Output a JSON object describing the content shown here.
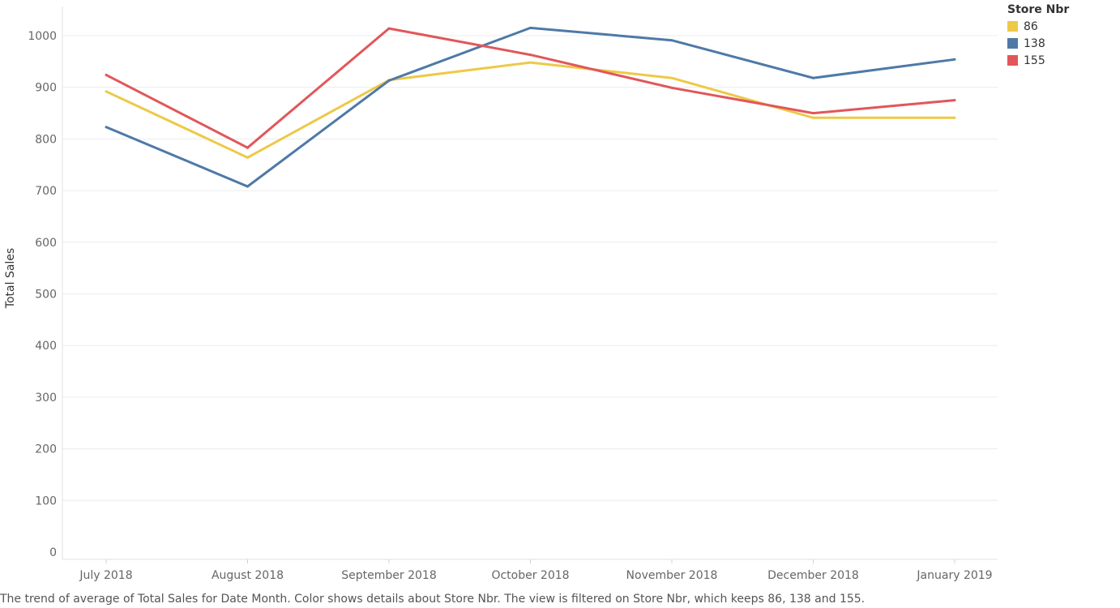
{
  "chart_data": {
    "type": "line",
    "xlabel": "",
    "ylabel": "Total Sales",
    "ylim": [
      0,
      1060
    ],
    "yticks": [
      0,
      100,
      200,
      300,
      400,
      500,
      600,
      700,
      800,
      900,
      1000
    ],
    "categories": [
      "July 2018",
      "August 2018",
      "September 2018",
      "October 2018",
      "November 2018",
      "December 2018",
      "January 2019"
    ],
    "grid": "horizontal",
    "legend": {
      "title": "Store Nbr",
      "placement": "top-right"
    },
    "series": [
      {
        "name": "86",
        "color": "#EDC948",
        "values": [
          892,
          764,
          914,
          948,
          918,
          841,
          841
        ]
      },
      {
        "name": "138",
        "color": "#4E79A7",
        "values": [
          823,
          708,
          913,
          1015,
          991,
          918,
          954
        ]
      },
      {
        "name": "155",
        "color": "#E15759",
        "values": [
          924,
          783,
          1014,
          963,
          899,
          850,
          875
        ]
      }
    ]
  },
  "caption": "The trend of average of Total Sales for Date Month.  Color shows details about Store Nbr. The view is filtered on Store Nbr, which keeps 86, 138 and 155."
}
